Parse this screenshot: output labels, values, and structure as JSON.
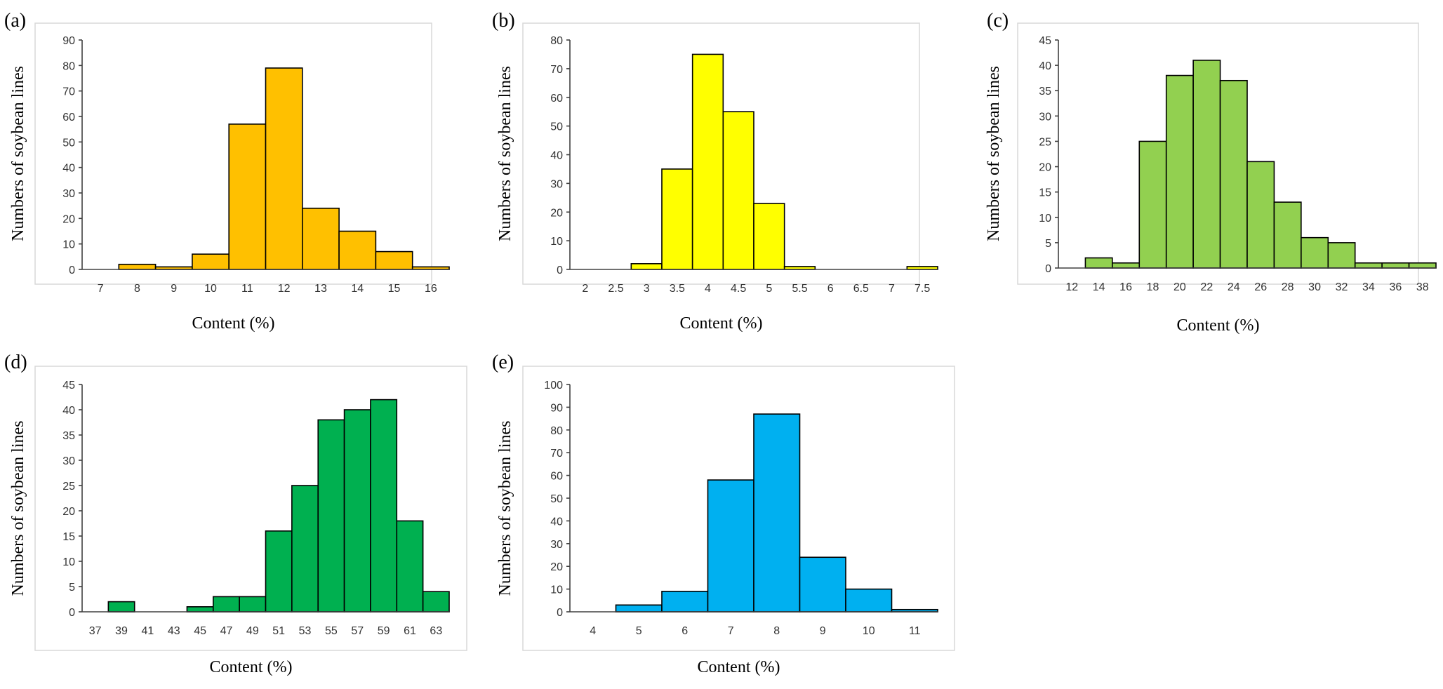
{
  "chart_data": [
    {
      "id": "a",
      "panel_label": "(a)",
      "type": "bar",
      "color": "#FFC000",
      "ylabel": "Numbers of soybean lines",
      "xlabel": "Content (%)",
      "ylim": [
        0,
        90
      ],
      "yticks": [
        0,
        10,
        20,
        30,
        40,
        50,
        60,
        70,
        80,
        90
      ],
      "xlim": [
        6.5,
        16.5
      ],
      "xticks": [
        7,
        8,
        9,
        10,
        11,
        12,
        13,
        14,
        15,
        16
      ],
      "bin_width": 1,
      "bars": [
        {
          "x": 8,
          "value": 2
        },
        {
          "x": 9,
          "value": 1
        },
        {
          "x": 10,
          "value": 6
        },
        {
          "x": 11,
          "value": 57
        },
        {
          "x": 12,
          "value": 79
        },
        {
          "x": 13,
          "value": 24
        },
        {
          "x": 14,
          "value": 15
        },
        {
          "x": 15,
          "value": 7
        },
        {
          "x": 16,
          "value": 1
        }
      ]
    },
    {
      "id": "b",
      "panel_label": "(b)",
      "type": "bar",
      "color": "#FFFF00",
      "ylabel": "Numbers of soybean lines",
      "xlabel": "Content (%)",
      "ylim": [
        0,
        80
      ],
      "yticks": [
        0,
        10,
        20,
        30,
        40,
        50,
        60,
        70,
        80
      ],
      "xlim": [
        1.75,
        7.75
      ],
      "xticks": [
        "2",
        "2.5",
        "3",
        "3.5",
        "4",
        "4.5",
        "5",
        "5.5",
        "6",
        "6.5",
        "7",
        "7.5"
      ],
      "bin_width": 0.5,
      "bars": [
        {
          "x": 3,
          "value": 2
        },
        {
          "x": 3.5,
          "value": 35
        },
        {
          "x": 4,
          "value": 75
        },
        {
          "x": 4.5,
          "value": 55
        },
        {
          "x": 5,
          "value": 23
        },
        {
          "x": 5.5,
          "value": 1
        },
        {
          "x": 7.5,
          "value": 1
        }
      ]
    },
    {
      "id": "c",
      "panel_label": "(c)",
      "type": "bar",
      "color": "#92D050",
      "ylabel": "Numbers of soybean lines",
      "xlabel": "Content (%)",
      "ylim": [
        0,
        45
      ],
      "yticks": [
        0,
        5,
        10,
        15,
        20,
        25,
        30,
        35,
        40,
        45
      ],
      "xlim": [
        11,
        39
      ],
      "xticks": [
        12,
        14,
        16,
        18,
        20,
        22,
        24,
        26,
        28,
        30,
        32,
        34,
        36,
        38
      ],
      "bin_width": 2,
      "bars": [
        {
          "x": 14,
          "value": 2
        },
        {
          "x": 16,
          "value": 1
        },
        {
          "x": 18,
          "value": 25
        },
        {
          "x": 20,
          "value": 38
        },
        {
          "x": 22,
          "value": 41
        },
        {
          "x": 24,
          "value": 37
        },
        {
          "x": 26,
          "value": 21
        },
        {
          "x": 28,
          "value": 13
        },
        {
          "x": 30,
          "value": 6
        },
        {
          "x": 32,
          "value": 5
        },
        {
          "x": 34,
          "value": 1
        },
        {
          "x": 36,
          "value": 1
        },
        {
          "x": 38,
          "value": 1
        }
      ]
    },
    {
      "id": "d",
      "panel_label": "(d)",
      "type": "bar",
      "color": "#00B050",
      "ylabel": "Numbers of soybean lines",
      "xlabel": "Content (%)",
      "ylim": [
        0,
        45
      ],
      "yticks": [
        0,
        5,
        10,
        15,
        20,
        25,
        30,
        35,
        40,
        45
      ],
      "xlim": [
        36,
        64
      ],
      "xticks": [
        37,
        39,
        41,
        43,
        45,
        47,
        49,
        51,
        53,
        55,
        57,
        59,
        61,
        63
      ],
      "bin_width": 2,
      "bars": [
        {
          "x": 39,
          "value": 2
        },
        {
          "x": 45,
          "value": 1
        },
        {
          "x": 47,
          "value": 3
        },
        {
          "x": 49,
          "value": 3
        },
        {
          "x": 51,
          "value": 16
        },
        {
          "x": 53,
          "value": 25
        },
        {
          "x": 55,
          "value": 38
        },
        {
          "x": 57,
          "value": 40
        },
        {
          "x": 59,
          "value": 42
        },
        {
          "x": 61,
          "value": 18
        },
        {
          "x": 63,
          "value": 4
        }
      ]
    },
    {
      "id": "e",
      "panel_label": "(e)",
      "type": "bar",
      "color": "#00B0F0",
      "ylabel": "Numbers of soybean lines",
      "xlabel": "Content (%)",
      "ylim": [
        0,
        100
      ],
      "yticks": [
        0,
        10,
        20,
        30,
        40,
        50,
        60,
        70,
        80,
        90,
        100
      ],
      "xlim": [
        3.5,
        11.5
      ],
      "xticks": [
        4,
        5,
        6,
        7,
        8,
        9,
        10,
        11
      ],
      "bin_width": 1,
      "bars": [
        {
          "x": 5,
          "value": 3
        },
        {
          "x": 6,
          "value": 9
        },
        {
          "x": 7,
          "value": 58
        },
        {
          "x": 8,
          "value": 87
        },
        {
          "x": 9,
          "value": 24
        },
        {
          "x": 10,
          "value": 10
        },
        {
          "x": 11,
          "value": 1
        }
      ]
    }
  ]
}
